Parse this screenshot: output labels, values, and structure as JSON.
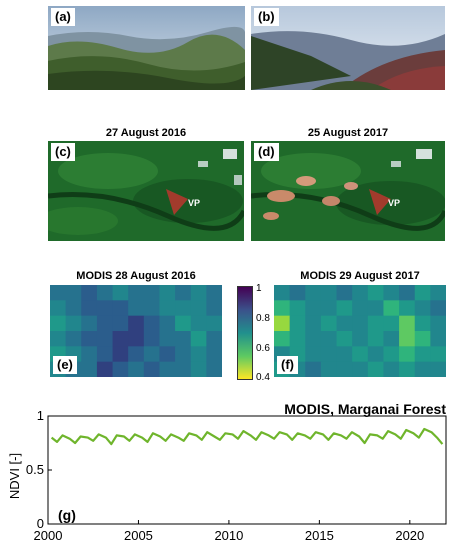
{
  "photos": {
    "a_label": "(a)",
    "b_label": "(b)"
  },
  "satellite": {
    "c_title": "27  August 2016",
    "d_title": "25 August 2017",
    "c_label": "(c)",
    "d_label": "(d)",
    "marker_label": "VP"
  },
  "modis_maps": {
    "e_title": "MODIS 28 August 2016",
    "f_title": "MODIS 29 August 2017",
    "e_label": "(e)",
    "f_label": "(f)",
    "colorbar_ticks": [
      "1",
      "0.8",
      "0.6",
      "0.4"
    ]
  },
  "timeseries": {
    "title": "MODIS, Marganai Forest",
    "ylabel": "NDVI [-]",
    "panel_label": "(g)",
    "yticks": [
      "0",
      "0.5",
      "1"
    ],
    "xticks": [
      "2000",
      "2005",
      "2010",
      "2015",
      "2020"
    ]
  },
  "chart_data": {
    "type": "line",
    "title": "MODIS, Marganai Forest",
    "ylabel": "NDVI [-]",
    "xlim": [
      2000,
      2022
    ],
    "ylim": [
      0,
      1
    ],
    "x_ticks": [
      2000,
      2005,
      2010,
      2015,
      2020
    ],
    "y_ticks": [
      0,
      0.5,
      1
    ],
    "series_color": "#6fb52c",
    "series": [
      {
        "x": [
          2000.2,
          2000.5,
          2000.8,
          2001.2,
          2001.5,
          2001.8,
          2002.2,
          2002.5,
          2002.8,
          2003.2,
          2003.5,
          2003.8,
          2004.2,
          2004.5,
          2004.8,
          2005.2,
          2005.5,
          2005.8,
          2006.2,
          2006.5,
          2006.8,
          2007.2,
          2007.5,
          2007.8,
          2008.2,
          2008.5,
          2008.8,
          2009.2,
          2009.5,
          2009.8,
          2010.2,
          2010.5,
          2010.8,
          2011.2,
          2011.5,
          2011.8,
          2012.2,
          2012.5,
          2012.8,
          2013.2,
          2013.5,
          2013.8,
          2014.2,
          2014.5,
          2014.8,
          2015.2,
          2015.5,
          2015.8,
          2016.2,
          2016.5,
          2016.8,
          2017.2,
          2017.5,
          2017.8,
          2018.2,
          2018.5,
          2018.8,
          2019.2,
          2019.5,
          2019.8,
          2020.2,
          2020.5,
          2020.8,
          2021.2,
          2021.5,
          2021.8
        ],
        "values": [
          0.8,
          0.76,
          0.82,
          0.79,
          0.75,
          0.81,
          0.8,
          0.77,
          0.83,
          0.8,
          0.74,
          0.82,
          0.81,
          0.77,
          0.83,
          0.8,
          0.76,
          0.84,
          0.81,
          0.77,
          0.83,
          0.8,
          0.77,
          0.84,
          0.82,
          0.78,
          0.85,
          0.81,
          0.78,
          0.84,
          0.83,
          0.79,
          0.86,
          0.82,
          0.78,
          0.85,
          0.82,
          0.79,
          0.85,
          0.83,
          0.78,
          0.84,
          0.82,
          0.79,
          0.85,
          0.83,
          0.78,
          0.84,
          0.82,
          0.79,
          0.85,
          0.81,
          0.75,
          0.83,
          0.82,
          0.79,
          0.86,
          0.83,
          0.79,
          0.87,
          0.84,
          0.8,
          0.88,
          0.85,
          0.8,
          0.74
        ]
      }
    ]
  }
}
